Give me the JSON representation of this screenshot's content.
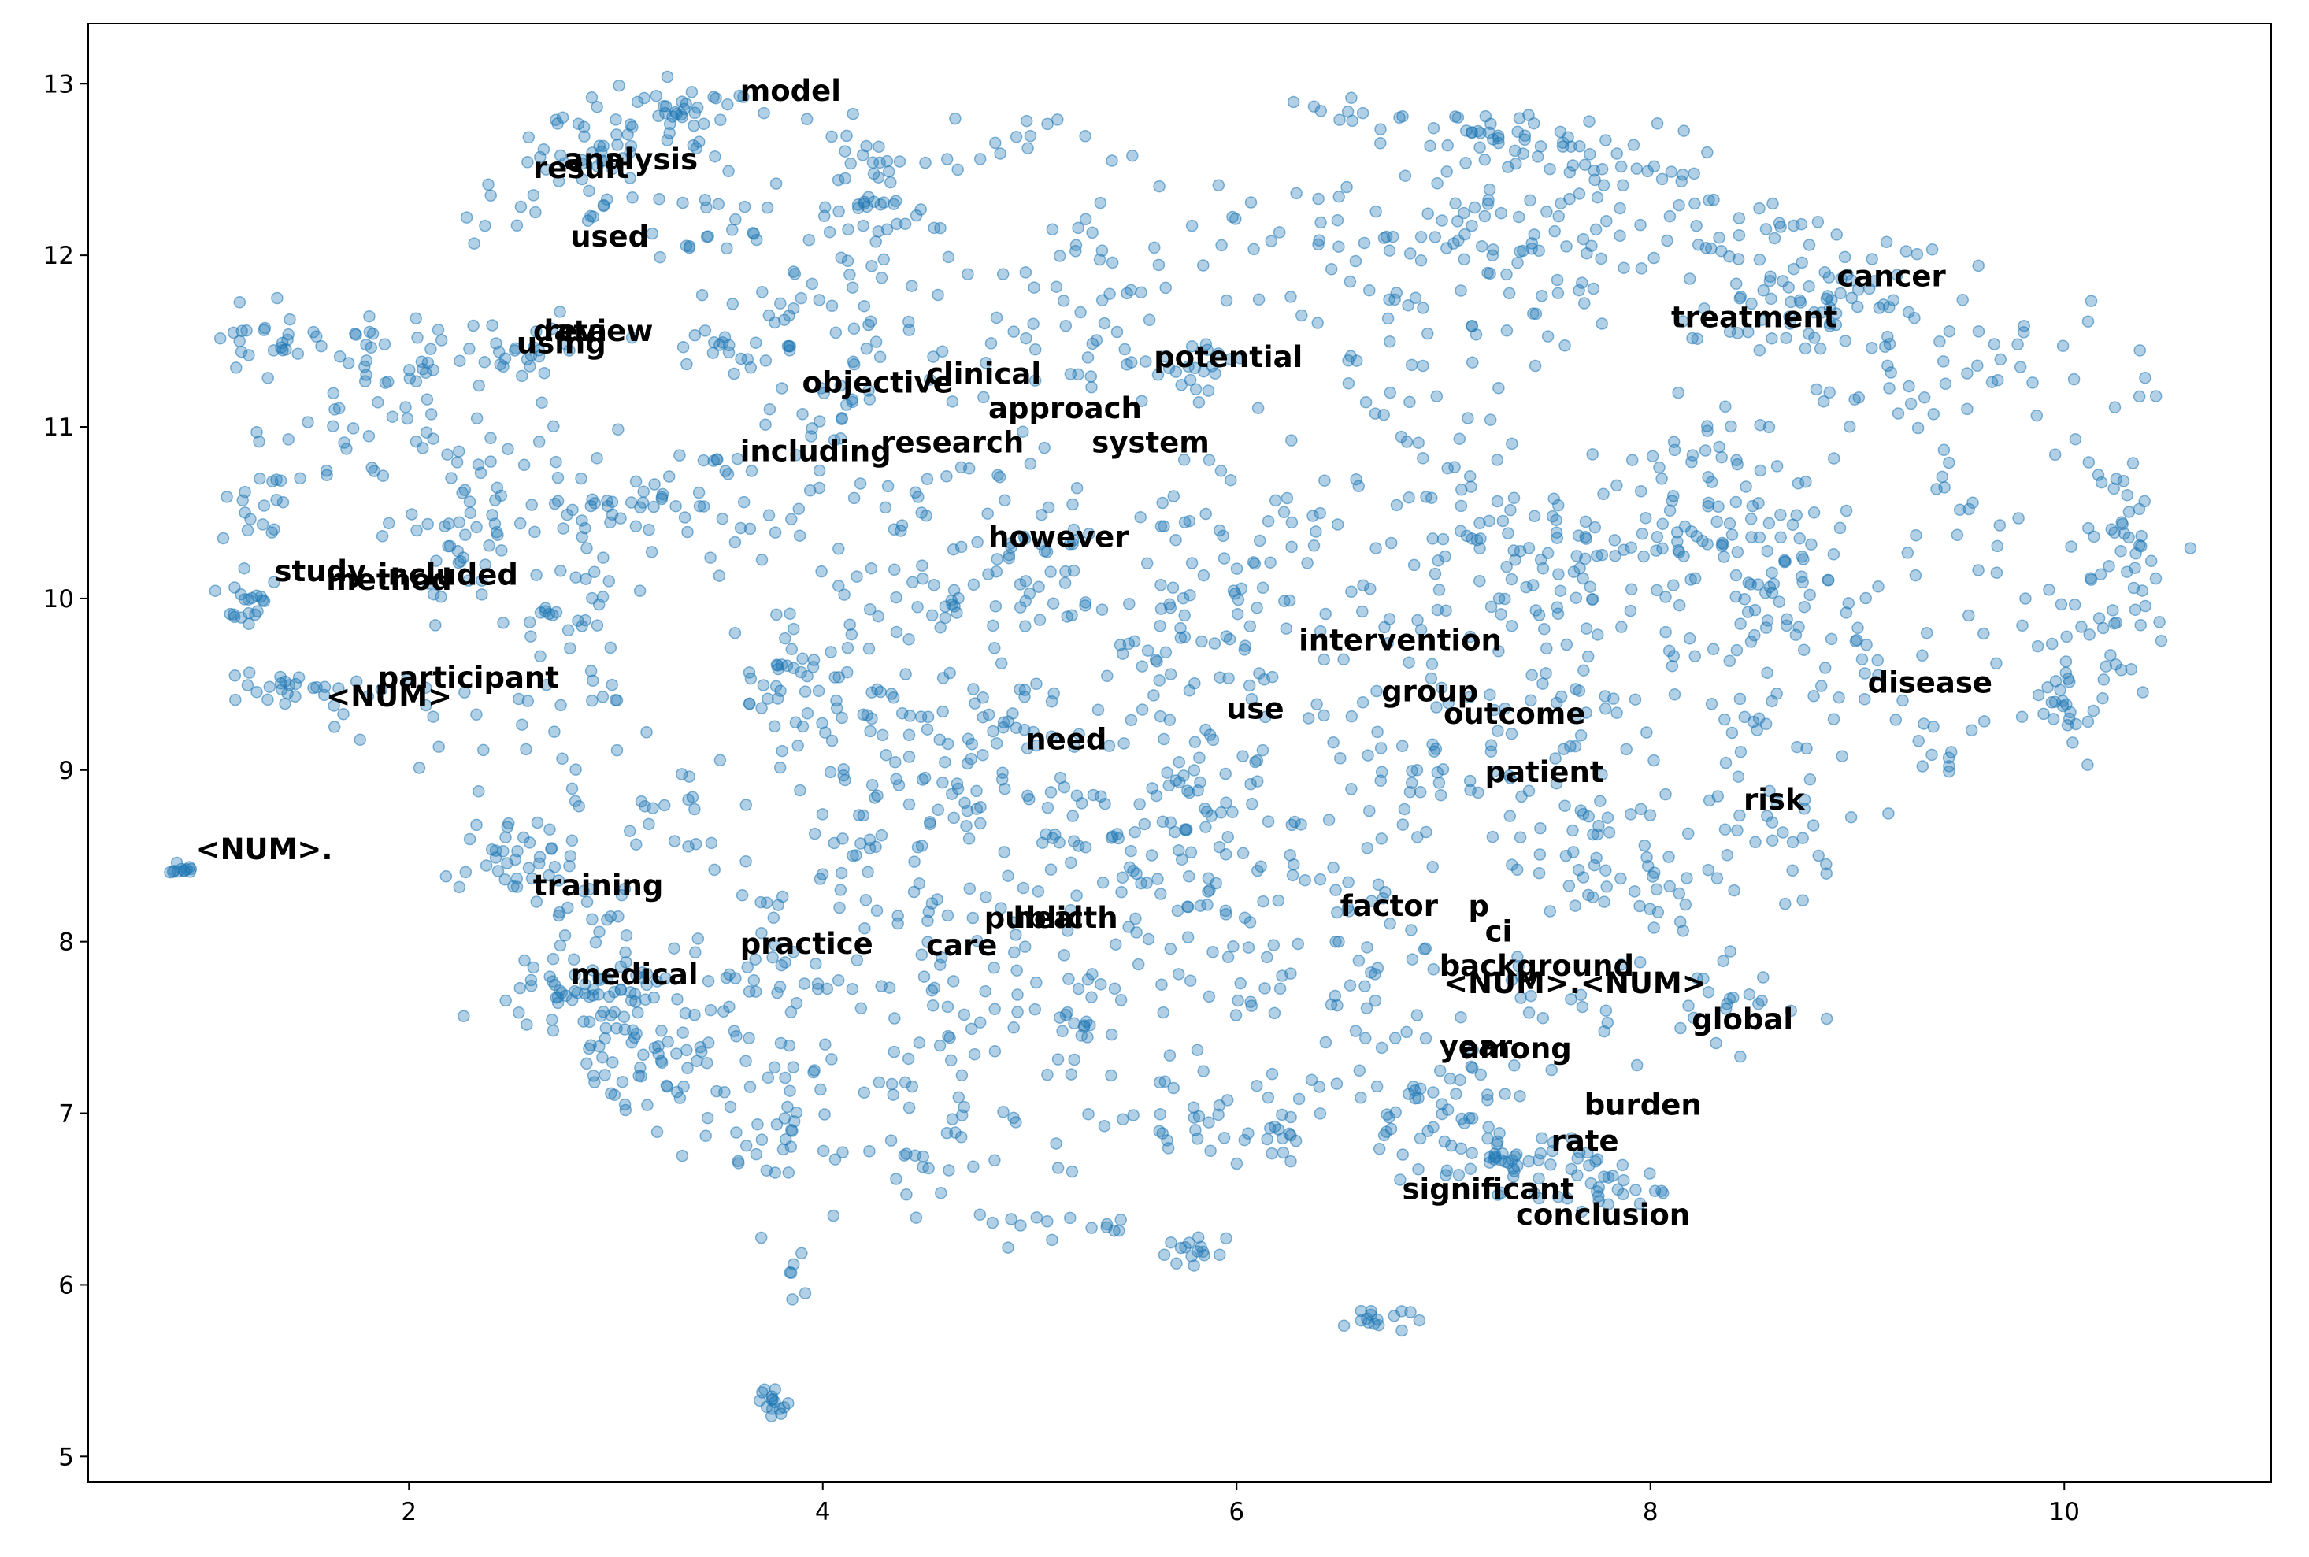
{
  "chart_data": {
    "type": "scatter",
    "title": "",
    "xlabel": "",
    "ylabel": "",
    "xlim": [
      0.45,
      11.0
    ],
    "ylim": [
      4.85,
      13.35
    ],
    "xticks": [
      2,
      4,
      6,
      8,
      10
    ],
    "yticks": [
      5,
      6,
      7,
      8,
      9,
      10,
      11,
      12,
      13
    ],
    "grid": false,
    "point_color": "#1f77b4",
    "point_alpha": 0.35,
    "clusters": [
      [
        3.3,
        12.85,
        0.22,
        0.09,
        40
      ],
      [
        2.9,
        12.6,
        0.2,
        0.12,
        30
      ],
      [
        4.2,
        12.6,
        0.15,
        0.1,
        18
      ],
      [
        4.3,
        12.3,
        0.15,
        0.12,
        25
      ],
      [
        5.0,
        12.65,
        0.18,
        0.08,
        15
      ],
      [
        6.6,
        12.8,
        0.15,
        0.07,
        12
      ],
      [
        7.3,
        12.65,
        0.25,
        0.12,
        40
      ],
      [
        7.8,
        12.3,
        0.35,
        0.25,
        60
      ],
      [
        7.2,
        11.9,
        0.3,
        0.2,
        40
      ],
      [
        8.5,
        12.0,
        0.3,
        0.2,
        35
      ],
      [
        8.9,
        11.75,
        0.15,
        0.12,
        20
      ],
      [
        8.6,
        11.6,
        0.25,
        0.15,
        25
      ],
      [
        1.3,
        11.5,
        0.12,
        0.1,
        25
      ],
      [
        1.85,
        11.45,
        0.2,
        0.12,
        30
      ],
      [
        2.55,
        11.45,
        0.2,
        0.1,
        25
      ],
      [
        3.6,
        11.45,
        0.15,
        0.1,
        20
      ],
      [
        3.5,
        12.2,
        0.2,
        0.15,
        25
      ],
      [
        2.7,
        12.3,
        0.25,
        0.15,
        20
      ],
      [
        4.0,
        11.1,
        0.15,
        0.12,
        20
      ],
      [
        5.6,
        11.4,
        0.2,
        0.15,
        30
      ],
      [
        2.8,
        10.6,
        0.15,
        0.15,
        20
      ],
      [
        3.1,
        10.5,
        0.2,
        0.3,
        35
      ],
      [
        1.25,
        10.55,
        0.1,
        0.1,
        15
      ],
      [
        2.3,
        10.3,
        0.15,
        0.2,
        25
      ],
      [
        1.2,
        9.97,
        0.08,
        0.07,
        20
      ],
      [
        2.7,
        9.8,
        0.2,
        0.2,
        20
      ],
      [
        1.4,
        9.47,
        0.2,
        0.05,
        25
      ],
      [
        2.2,
        9.3,
        0.25,
        0.15,
        20
      ],
      [
        0.9,
        8.42,
        0.03,
        0.02,
        12
      ],
      [
        2.5,
        8.5,
        0.12,
        0.15,
        30
      ],
      [
        2.8,
        8.2,
        0.2,
        0.2,
        25
      ],
      [
        2.8,
        7.7,
        0.2,
        0.12,
        45
      ],
      [
        3.3,
        7.7,
        0.25,
        0.2,
        40
      ],
      [
        3.1,
        7.3,
        0.2,
        0.2,
        40
      ],
      [
        3.5,
        7.1,
        0.2,
        0.2,
        25
      ],
      [
        3.8,
        7.0,
        0.15,
        0.25,
        25
      ],
      [
        3.9,
        9.5,
        0.2,
        0.15,
        30
      ],
      [
        4.3,
        9.3,
        0.3,
        0.3,
        45
      ],
      [
        4.7,
        8.9,
        0.3,
        0.3,
        50
      ],
      [
        4.3,
        8.5,
        0.3,
        0.3,
        40
      ],
      [
        4.8,
        10.2,
        0.3,
        0.3,
        60
      ],
      [
        5.4,
        9.6,
        0.4,
        0.4,
        60
      ],
      [
        5.3,
        8.6,
        0.3,
        0.3,
        40
      ],
      [
        5.9,
        8.8,
        0.25,
        0.3,
        35
      ],
      [
        6.4,
        8.3,
        0.3,
        0.3,
        35
      ],
      [
        6.8,
        8.9,
        0.25,
        0.3,
        35
      ],
      [
        6.3,
        9.8,
        0.3,
        0.3,
        30
      ],
      [
        6.0,
        10.5,
        0.3,
        0.3,
        30
      ],
      [
        7.2,
        10.5,
        0.35,
        0.3,
        60
      ],
      [
        7.6,
        10.2,
        0.25,
        0.2,
        35
      ],
      [
        8.3,
        10.6,
        0.2,
        0.3,
        50
      ],
      [
        8.5,
        9.8,
        0.25,
        0.4,
        50
      ],
      [
        8.7,
        10.1,
        0.15,
        0.3,
        25
      ],
      [
        7.8,
        9.5,
        0.3,
        0.3,
        30
      ],
      [
        7.4,
        9.0,
        0.25,
        0.3,
        35
      ],
      [
        7.8,
        8.5,
        0.2,
        0.15,
        25
      ],
      [
        8.1,
        8.4,
        0.15,
        0.2,
        20
      ],
      [
        8.6,
        8.6,
        0.2,
        0.2,
        30
      ],
      [
        9.0,
        11.4,
        0.3,
        0.3,
        30
      ],
      [
        9.6,
        11.3,
        0.3,
        0.3,
        30
      ],
      [
        10.3,
        10.3,
        0.15,
        0.4,
        45
      ],
      [
        10.05,
        9.9,
        0.25,
        0.3,
        30
      ],
      [
        10.0,
        9.4,
        0.1,
        0.1,
        20
      ],
      [
        9.5,
        10.2,
        0.2,
        0.3,
        20
      ],
      [
        9.0,
        9.6,
        0.2,
        0.3,
        20
      ],
      [
        5.8,
        7.0,
        0.15,
        0.2,
        25
      ],
      [
        6.2,
        6.95,
        0.1,
        0.1,
        20
      ],
      [
        6.8,
        7.1,
        0.2,
        0.25,
        30
      ],
      [
        5.8,
        6.2,
        0.07,
        0.05,
        15
      ],
      [
        5.1,
        6.35,
        0.2,
        0.05,
        15
      ],
      [
        4.0,
        7.7,
        0.3,
        0.3,
        30
      ],
      [
        4.6,
        7.4,
        0.25,
        0.2,
        25
      ],
      [
        5.3,
        7.6,
        0.25,
        0.15,
        25
      ],
      [
        5.9,
        7.8,
        0.25,
        0.3,
        25
      ],
      [
        4.5,
        6.7,
        0.2,
        0.15,
        15
      ],
      [
        7.4,
        6.7,
        0.25,
        0.08,
        40
      ],
      [
        7.9,
        6.55,
        0.15,
        0.08,
        20
      ],
      [
        7.1,
        7.0,
        0.2,
        0.3,
        30
      ],
      [
        7.6,
        7.7,
        0.2,
        0.3,
        20
      ],
      [
        8.4,
        7.7,
        0.15,
        0.15,
        20
      ],
      [
        6.7,
        5.8,
        0.1,
        0.05,
        15
      ],
      [
        3.75,
        5.3,
        0.05,
        0.05,
        15
      ],
      [
        3.85,
        6.1,
        0.03,
        0.08,
        6
      ],
      [
        4.0,
        11.7,
        0.3,
        0.2,
        25
      ],
      [
        5.3,
        12.0,
        0.3,
        0.25,
        30
      ],
      [
        6.5,
        12.1,
        0.4,
        0.25,
        35
      ],
      [
        6.8,
        11.4,
        0.35,
        0.3,
        30
      ],
      [
        4.7,
        11.6,
        0.35,
        0.3,
        30
      ],
      [
        3.5,
        10.6,
        0.3,
        0.3,
        25
      ],
      [
        4.4,
        10.3,
        0.3,
        0.3,
        30
      ],
      [
        5.8,
        10.0,
        0.3,
        0.3,
        25
      ],
      [
        7.1,
        9.9,
        0.3,
        0.3,
        25
      ],
      [
        9.4,
        9.1,
        0.2,
        0.15,
        12
      ],
      [
        2.0,
        10.8,
        0.3,
        0.3,
        25
      ],
      [
        1.6,
        11.0,
        0.2,
        0.2,
        15
      ],
      [
        2.4,
        10.8,
        0.2,
        0.2,
        15
      ],
      [
        3.0,
        9.2,
        0.25,
        0.25,
        15
      ],
      [
        3.4,
        8.6,
        0.2,
        0.25,
        20
      ],
      [
        4.8,
        8.0,
        0.3,
        0.3,
        25
      ],
      [
        5.6,
        8.3,
        0.25,
        0.25,
        20
      ],
      [
        6.6,
        7.7,
        0.2,
        0.2,
        20
      ],
      [
        5.0,
        6.9,
        0.3,
        0.2,
        15
      ]
    ],
    "labels": [
      {
        "text": "model",
        "x": 3.6,
        "y": 12.9
      },
      {
        "text": "analysis",
        "x": 2.75,
        "y": 12.5
      },
      {
        "text": "result",
        "x": 2.6,
        "y": 12.45
      },
      {
        "text": "used",
        "x": 2.78,
        "y": 12.05
      },
      {
        "text": "review",
        "x": 2.65,
        "y": 11.5
      },
      {
        "text": "data",
        "x": 2.6,
        "y": 11.5
      },
      {
        "text": "using",
        "x": 2.52,
        "y": 11.43
      },
      {
        "text": "objective",
        "x": 3.9,
        "y": 11.2
      },
      {
        "text": "clinical",
        "x": 4.5,
        "y": 11.25
      },
      {
        "text": "potential",
        "x": 5.6,
        "y": 11.35
      },
      {
        "text": "approach",
        "x": 4.8,
        "y": 11.05
      },
      {
        "text": "research",
        "x": 4.28,
        "y": 10.85
      },
      {
        "text": "system",
        "x": 5.3,
        "y": 10.85
      },
      {
        "text": "including",
        "x": 3.6,
        "y": 10.8
      },
      {
        "text": "however",
        "x": 4.8,
        "y": 10.3
      },
      {
        "text": "study",
        "x": 1.35,
        "y": 10.1
      },
      {
        "text": "included",
        "x": 1.85,
        "y": 10.08
      },
      {
        "text": "method",
        "x": 1.6,
        "y": 10.05
      },
      {
        "text": "intervention",
        "x": 6.3,
        "y": 9.7
      },
      {
        "text": "participant",
        "x": 1.85,
        "y": 9.48
      },
      {
        "text": "<NUM>",
        "x": 1.6,
        "y": 9.37
      },
      {
        "text": "group",
        "x": 6.7,
        "y": 9.4
      },
      {
        "text": "use",
        "x": 5.95,
        "y": 9.3
      },
      {
        "text": "outcome",
        "x": 7.0,
        "y": 9.27
      },
      {
        "text": "disease",
        "x": 9.05,
        "y": 9.45
      },
      {
        "text": "need",
        "x": 4.98,
        "y": 9.12
      },
      {
        "text": "patient",
        "x": 7.2,
        "y": 8.93
      },
      {
        "text": "risk",
        "x": 8.45,
        "y": 8.77
      },
      {
        "text": "<NUM>.",
        "x": 0.97,
        "y": 8.48
      },
      {
        "text": "training",
        "x": 2.6,
        "y": 8.27
      },
      {
        "text": "factor",
        "x": 6.5,
        "y": 8.15
      },
      {
        "text": "p",
        "x": 7.12,
        "y": 8.15
      },
      {
        "text": "ci",
        "x": 7.2,
        "y": 8.0
      },
      {
        "text": "public",
        "x": 4.78,
        "y": 8.08
      },
      {
        "text": "health",
        "x": 4.92,
        "y": 8.08
      },
      {
        "text": "practice",
        "x": 3.6,
        "y": 7.93
      },
      {
        "text": "care",
        "x": 4.5,
        "y": 7.92
      },
      {
        "text": "medical",
        "x": 2.78,
        "y": 7.75
      },
      {
        "text": "background",
        "x": 6.98,
        "y": 7.8
      },
      {
        "text": "<NUM>.<NUM>",
        "x": 7.0,
        "y": 7.7
      },
      {
        "text": "global",
        "x": 8.2,
        "y": 7.49
      },
      {
        "text": "year",
        "x": 6.98,
        "y": 7.33
      },
      {
        "text": "among",
        "x": 7.08,
        "y": 7.32
      },
      {
        "text": "burden",
        "x": 7.68,
        "y": 6.99
      },
      {
        "text": "rate",
        "x": 7.52,
        "y": 6.78
      },
      {
        "text": "significant",
        "x": 6.8,
        "y": 6.5
      },
      {
        "text": "conclusion",
        "x": 7.35,
        "y": 6.35
      },
      {
        "text": "cancer",
        "x": 8.9,
        "y": 11.82
      },
      {
        "text": "treatment",
        "x": 8.1,
        "y": 11.58
      }
    ]
  }
}
